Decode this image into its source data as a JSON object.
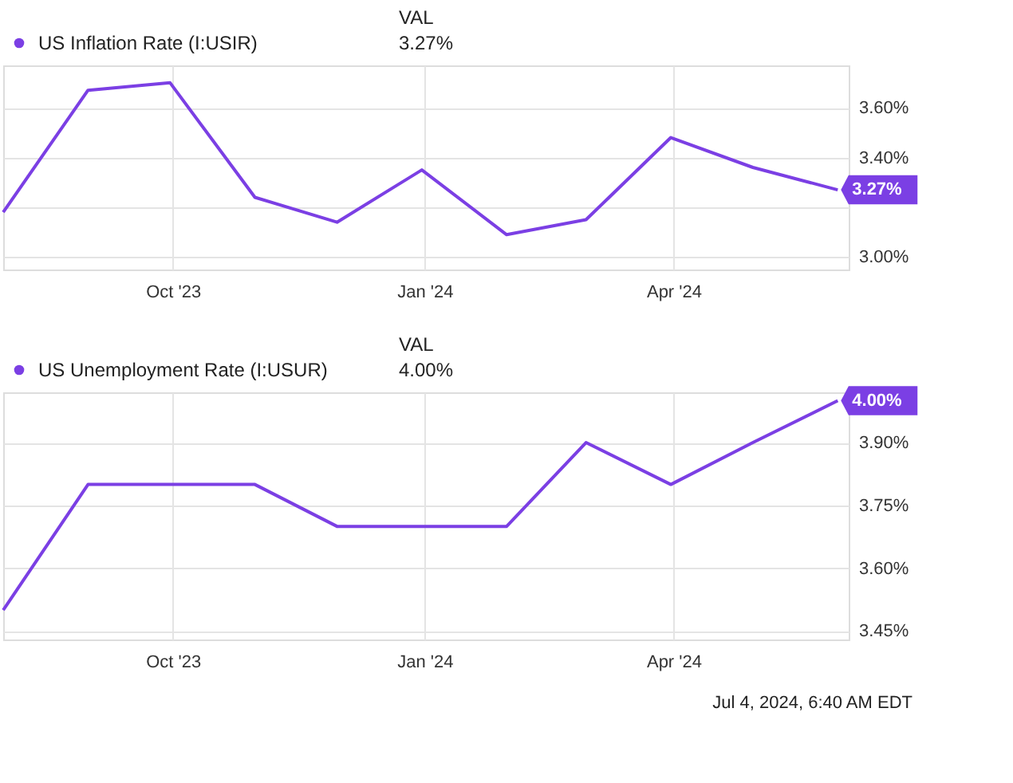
{
  "chart_data": [
    {
      "type": "line",
      "legend_title": "VAL",
      "legend": "top left",
      "grid": true,
      "marker": "none",
      "x": [
        "2023-07-31",
        "2023-08-31",
        "2023-09-30",
        "2023-10-31",
        "2023-11-30",
        "2023-12-31",
        "2024-01-31",
        "2024-02-29",
        "2024-03-31",
        "2024-04-30",
        "2024-05-31"
      ],
      "series": [
        {
          "name": "US Inflation Rate (I:USIR)",
          "color": "#7b3fe4",
          "values": [
            3.18,
            3.67,
            3.7,
            3.24,
            3.14,
            3.35,
            3.09,
            3.15,
            3.48,
            3.36,
            3.27
          ],
          "value_labels": [
            null,
            null,
            null,
            null,
            null,
            null,
            null,
            null,
            null,
            null,
            "3.27%"
          ]
        }
      ],
      "xlim": [
        "2023-07-31",
        "2024-06-04"
      ],
      "xticks": [
        {
          "value": "2023-10-01",
          "label": "Oct '23"
        },
        {
          "value": "2024-01-01",
          "label": "Jan '24"
        },
        {
          "value": "2024-04-01",
          "label": "Apr '24"
        }
      ],
      "ylim": [
        2.95,
        3.77
      ],
      "yticks": [
        {
          "value": 3.0,
          "label": "3.00%"
        },
        {
          "value": 3.2,
          "label": null
        },
        {
          "value": 3.4,
          "label": "3.40%"
        },
        {
          "value": 3.6,
          "label": "3.60%"
        }
      ]
    },
    {
      "type": "line",
      "legend_title": "VAL",
      "legend": "top left",
      "grid": true,
      "marker": "none",
      "x": [
        "2023-07-31",
        "2023-08-31",
        "2023-09-30",
        "2023-10-31",
        "2023-11-30",
        "2023-12-31",
        "2024-01-31",
        "2024-02-29",
        "2024-03-31",
        "2024-04-30",
        "2024-05-31"
      ],
      "series": [
        {
          "name": "US Unemployment Rate (I:USUR)",
          "color": "#7b3fe4",
          "values": [
            3.5,
            3.8,
            3.8,
            3.8,
            3.7,
            3.7,
            3.7,
            3.9,
            3.8,
            3.9,
            4.0
          ],
          "value_labels": [
            null,
            null,
            null,
            null,
            null,
            null,
            null,
            null,
            null,
            null,
            "4.00%"
          ]
        }
      ],
      "xlim": [
        "2023-07-31",
        "2024-06-04"
      ],
      "xticks": [
        {
          "value": "2023-10-01",
          "label": "Oct '23"
        },
        {
          "value": "2024-01-01",
          "label": "Jan '24"
        },
        {
          "value": "2024-04-01",
          "label": "Apr '24"
        }
      ],
      "ylim": [
        3.43,
        4.02
      ],
      "yticks": [
        {
          "value": 3.45,
          "label": "3.45%"
        },
        {
          "value": 3.6,
          "label": "3.60%"
        },
        {
          "value": 3.75,
          "label": "3.75%"
        },
        {
          "value": 3.9,
          "label": "3.90%"
        }
      ],
      "annotations": [
        "Jul 4, 2024, 6:40 AM EDT"
      ]
    }
  ]
}
